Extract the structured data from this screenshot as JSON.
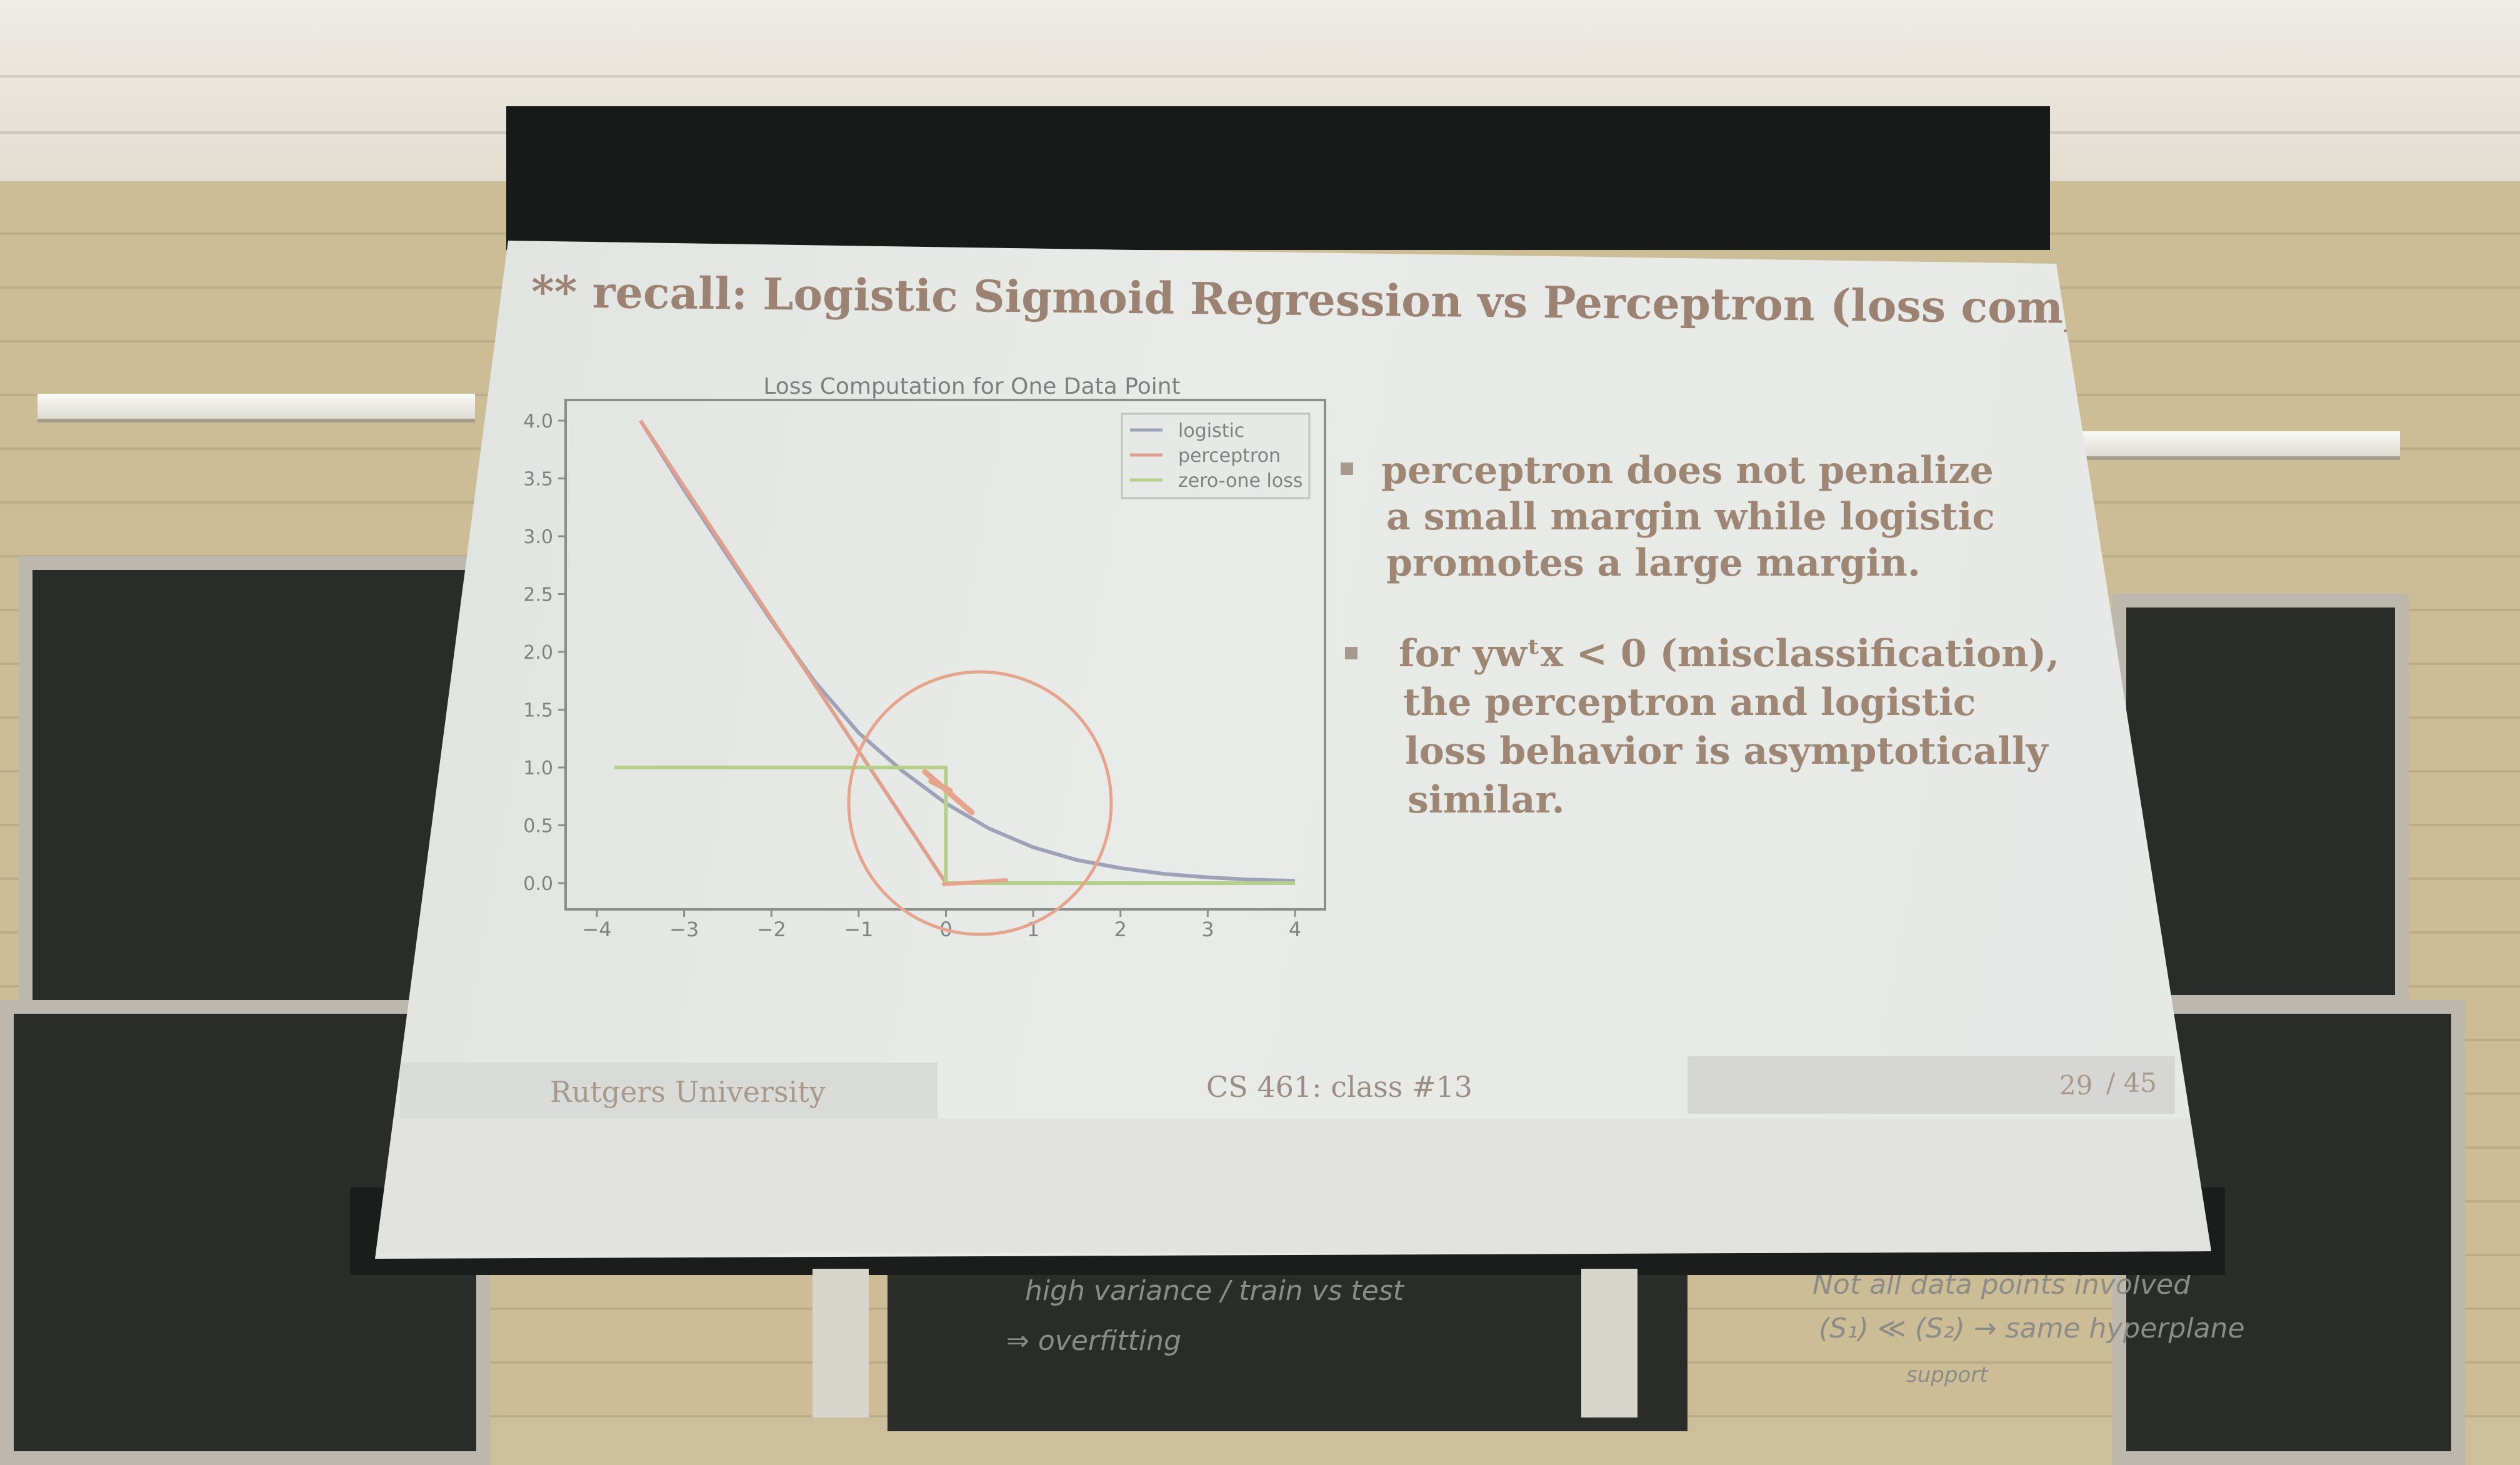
{
  "slide": {
    "title": "** recall: Logistic Sigmoid Regression vs Perceptron (loss comparison)",
    "bullet1_lines": [
      "perceptron does not penalize",
      "a small margin while logistic",
      "promotes a large margin."
    ],
    "bullet2_lines": [
      "for ywᵗx < 0 (misclassification),",
      "the perceptron and logistic",
      "loss behavior is asymptotically",
      "similar."
    ],
    "footer": {
      "left": "Rutgers University",
      "center": "CS 461: class #13",
      "page": "29",
      "total": "/ 45"
    }
  },
  "chalkboard": {
    "left_lines": [
      "high variance / train vs test",
      "⇒ overfitting"
    ],
    "right_lines": [
      "Not all data points involved",
      "(S₁) ≪ (S₂) → same hyperplane",
      "support"
    ]
  },
  "colors": {
    "logistic": "#9da2b8",
    "perceptron": "#e0a08e",
    "zero_one": "#b6cf8a",
    "annotation": "#e6a48c"
  },
  "chart_data": {
    "type": "line",
    "title": "Loss Computation for One Data Point",
    "xlabel": "",
    "ylabel": "",
    "xlim": [
      -4,
      4
    ],
    "ylim": [
      0,
      4
    ],
    "xticks": [
      -4,
      -3,
      -2,
      -1,
      0,
      1,
      2,
      3,
      4
    ],
    "yticks": [
      0.0,
      0.5,
      1.0,
      1.5,
      2.0,
      2.5,
      3.0,
      3.5,
      4.0
    ],
    "legend_position": "top-right",
    "series": [
      {
        "name": "logistic",
        "x": [
          -3.5,
          -3,
          -2.5,
          -2,
          -1.5,
          -1,
          -0.5,
          0,
          0.5,
          1,
          1.5,
          2,
          2.5,
          3,
          3.5,
          4
        ],
        "y": [
          4.0,
          3.4,
          2.83,
          2.27,
          1.74,
          1.3,
          0.97,
          0.69,
          0.47,
          0.31,
          0.2,
          0.13,
          0.08,
          0.05,
          0.03,
          0.02
        ]
      },
      {
        "name": "perceptron",
        "x": [
          -3.5,
          0,
          4
        ],
        "y": [
          4.0,
          0,
          0
        ]
      },
      {
        "name": "zero-one loss",
        "x": [
          -3.8,
          0,
          0,
          4
        ],
        "y": [
          1,
          1,
          0,
          0
        ]
      }
    ]
  }
}
